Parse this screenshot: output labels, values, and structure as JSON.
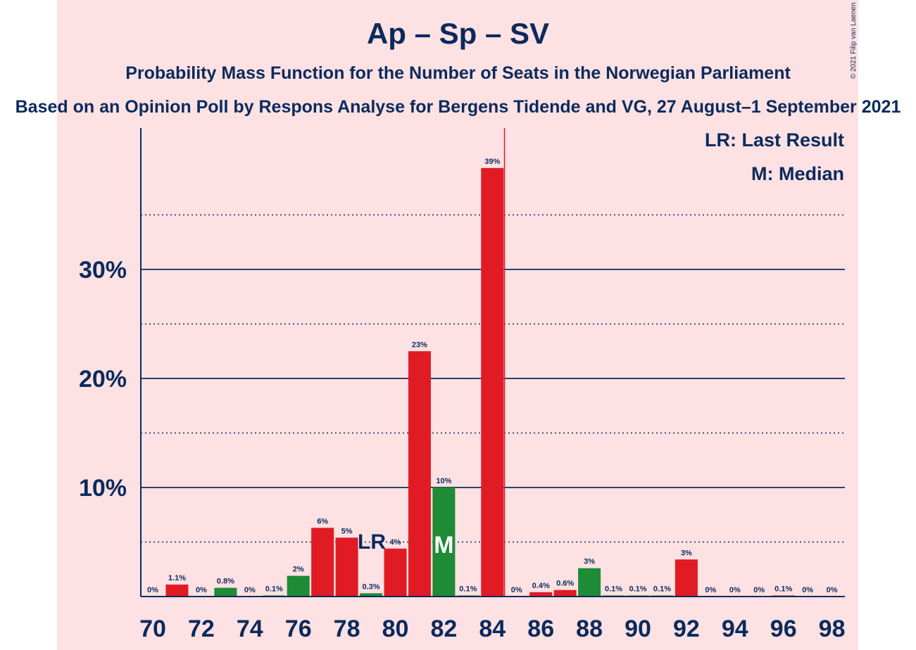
{
  "header": {
    "title": "Ap – Sp – SV",
    "subtitle": "Probability Mass Function for the Number of Seats in the Norwegian Parliament",
    "source": "Based on an Opinion Poll by Respons Analyse for Bergens Tidende and VG, 27 August–1 September 2021",
    "copyright": "© 2021 Filip van Laenen"
  },
  "legend": {
    "last_result": "LR: Last Result",
    "median": "M: Median"
  },
  "colors": {
    "background": "#fde1e3",
    "text": "#0b2a5c",
    "red": "#e01b24",
    "green": "#1e8b36",
    "majority_line": "#e01b24"
  },
  "chart_data": {
    "type": "bar",
    "x": [
      70,
      71,
      72,
      73,
      74,
      75,
      76,
      77,
      78,
      79,
      80,
      81,
      82,
      83,
      84,
      85,
      86,
      87,
      88,
      89,
      90,
      91,
      92,
      93,
      94,
      95,
      96,
      97,
      98
    ],
    "values": [
      0,
      1.1,
      0,
      0.8,
      0,
      0.1,
      1.9,
      6.3,
      5.4,
      0.3,
      4.4,
      22.5,
      10.0,
      0.1,
      39.3,
      0,
      0.4,
      0.6,
      2.6,
      0.1,
      0.1,
      0.1,
      3.4,
      0,
      0,
      0,
      0.1,
      0,
      0
    ],
    "labels": [
      "0%",
      "1.1%",
      "0%",
      "0.8%",
      "0%",
      "0.1%",
      "2%",
      "6%",
      "5%",
      "0.3%",
      "4%",
      "23%",
      "10%",
      "0.1%",
      "39%",
      "0%",
      "0.4%",
      "0.6%",
      "3%",
      "0.1%",
      "0.1%",
      "0.1%",
      "3%",
      "0%",
      "0%",
      "0%",
      "0.1%",
      "0%",
      "0%"
    ],
    "bar_colors": [
      "red",
      "red",
      "green",
      "green",
      "green",
      "green",
      "green",
      "red",
      "red",
      "green",
      "red",
      "red",
      "green",
      "green",
      "red",
      "red",
      "red",
      "red",
      "green",
      "green",
      "green",
      "green",
      "red",
      "red",
      "red",
      "red",
      "red",
      "red",
      "red"
    ],
    "x_ticks": [
      70,
      72,
      74,
      76,
      78,
      80,
      82,
      84,
      86,
      88,
      90,
      92,
      94,
      96,
      98
    ],
    "y_ticks": [
      10,
      20,
      30
    ],
    "y_tick_labels": [
      "10%",
      "20%",
      "30%"
    ],
    "ylim": [
      0,
      43
    ],
    "last_result_seat": 79,
    "last_result_label": "LR",
    "median_seat": 82,
    "median_label": "M",
    "majority_threshold": 84.5,
    "grid": true
  }
}
